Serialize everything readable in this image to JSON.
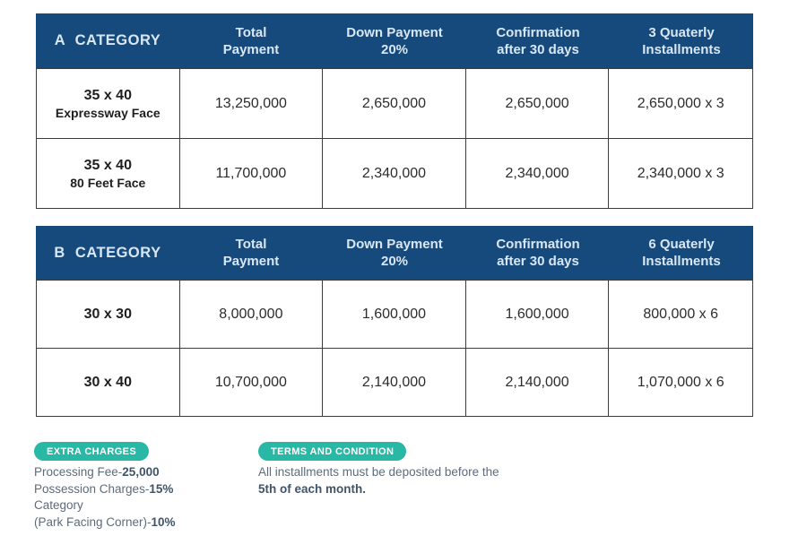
{
  "colors": {
    "header_background": "#164a7d",
    "header_text": "#d9e7f3",
    "badge_teal": "#29b8a5",
    "cell_text": "#2c2c2c",
    "border": "#3c3c3c",
    "footnote_text": "#5d6b7a",
    "footnote_bold_text": "#3f5468"
  },
  "tables": [
    {
      "header": [
        "A CATEGORY",
        "Total\nPayment",
        "Down Payment\n20%",
        "Confirmation\nafter 30 days",
        "3 Quaterly\nInstallments"
      ],
      "rows": [
        {
          "label_main": "35 x 40",
          "label_sub": "Expressway Face",
          "cells": [
            "13,250,000",
            "2,650,000",
            "2,650,000",
            "2,650,000 x 3"
          ]
        },
        {
          "label_main": "35 x 40",
          "label_sub": "80 Feet Face",
          "cells": [
            "11,700,000",
            "2,340,000",
            "2,340,000",
            "2,340,000 x 3"
          ]
        }
      ]
    },
    {
      "header": [
        "B CATEGORY",
        "Total\nPayment",
        "Down Payment\n20%",
        "Confirmation\nafter 30 days",
        "6 Quaterly\nInstallments"
      ],
      "rows": [
        {
          "label_main": "30 x 30",
          "label_sub": "",
          "cells": [
            "8,000,000",
            "1,600,000",
            "1,600,000",
            "800,000 x 6"
          ]
        },
        {
          "label_main": "30 x 40",
          "label_sub": "",
          "cells": [
            "10,700,000",
            "2,140,000",
            "2,140,000",
            "1,070,000 x 6"
          ]
        }
      ]
    }
  ],
  "extra_charges": {
    "badge": "EXTRA CHARGES",
    "items": [
      {
        "label": "Processing Fee-",
        "value": "25,000"
      },
      {
        "label": "Possession Charges-",
        "value": "15%"
      },
      {
        "label": "Category",
        "value": ""
      },
      {
        "label": "(Park Facing Corner)-",
        "value": "10%"
      }
    ]
  },
  "terms": {
    "badge": "TERMS AND CONDITION",
    "text_regular": "All installments must be deposited before the",
    "text_bold": "5th of each month."
  }
}
